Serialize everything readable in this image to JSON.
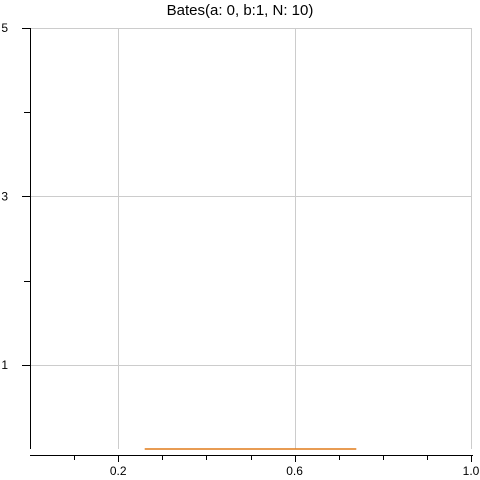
{
  "chart_data": {
    "type": "line",
    "title": "Bates(a: 0, b:1, N: 10)",
    "xlabel": "",
    "ylabel": "",
    "xlim": [
      0,
      1.0
    ],
    "ylim": [
      0,
      5
    ],
    "x_ticks": [
      0.1,
      0.2,
      0.3,
      0.4,
      0.5,
      0.6,
      0.7,
      0.8,
      0.9,
      1.0
    ],
    "x_tick_labels": [
      {
        "value": 0.2,
        "label": "0.2"
      },
      {
        "value": 0.6,
        "label": "0.6"
      },
      {
        "value": 1.0,
        "label": "1.0"
      }
    ],
    "y_ticks": [
      1,
      2,
      3,
      4,
      5
    ],
    "y_tick_labels": [
      {
        "value": 1,
        "label": "1"
      },
      {
        "value": 3,
        "label": "3"
      },
      {
        "value": 5,
        "label": "5"
      }
    ],
    "x_grid": [
      0.2,
      0.6,
      1.0
    ],
    "y_grid": [
      1,
      3,
      5
    ],
    "grid": true,
    "series": [
      {
        "color": "#e07b1a",
        "x": [
          0.26,
          0.74
        ],
        "y": [
          0.0,
          0.0
        ]
      }
    ]
  }
}
